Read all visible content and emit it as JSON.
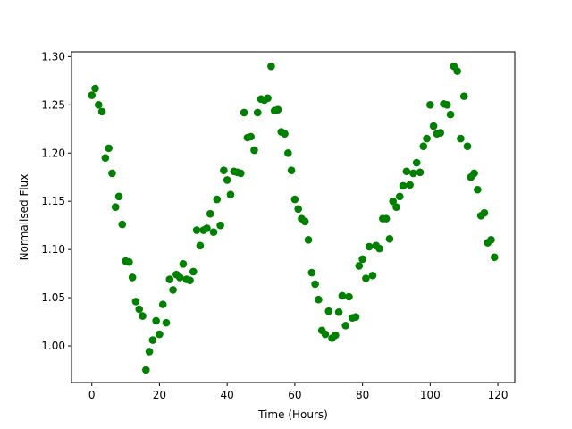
{
  "chart_data": {
    "type": "scatter",
    "title": "",
    "xlabel": "Time (Hours)",
    "ylabel": "Normalised Flux",
    "xlim": [
      -6,
      125
    ],
    "ylim": [
      0.962,
      1.305
    ],
    "xticks": [
      0,
      20,
      40,
      60,
      80,
      100,
      120
    ],
    "yticks": [
      1.0,
      1.05,
      1.1,
      1.15,
      1.2,
      1.25,
      1.3
    ],
    "ytick_labels": [
      "1.00",
      "1.05",
      "1.10",
      "1.15",
      "1.20",
      "1.25",
      "1.30"
    ],
    "grid": false,
    "legend": "none",
    "marker_color": "#008000",
    "series": [
      {
        "x": [
          0,
          1,
          2,
          3,
          4,
          5,
          6,
          7,
          8,
          9,
          10,
          11,
          12,
          13,
          14,
          15,
          16,
          17,
          18,
          19,
          20,
          21,
          22,
          23,
          24,
          25,
          26,
          27,
          28,
          29,
          30,
          31,
          32,
          33,
          34,
          35,
          36,
          37,
          38,
          39,
          40,
          41,
          42,
          43,
          44,
          45,
          46,
          47,
          48,
          49,
          50,
          51,
          52,
          53,
          54,
          55,
          56,
          57,
          58,
          59,
          60,
          61,
          62,
          63,
          64,
          65,
          66,
          67,
          68,
          69,
          70,
          71,
          72,
          73,
          74,
          75,
          76,
          77,
          78,
          79,
          80,
          81,
          82,
          83,
          84,
          85,
          86,
          87,
          88,
          89,
          90,
          91,
          92,
          93,
          94,
          95,
          96,
          97,
          98,
          99,
          100,
          101,
          102,
          103,
          104,
          105,
          106,
          107,
          108,
          109,
          110,
          111,
          112,
          113,
          114,
          115,
          116,
          117,
          118,
          119
        ],
        "y": [
          1.26,
          1.267,
          1.25,
          1.243,
          1.195,
          1.205,
          1.179,
          1.144,
          1.155,
          1.126,
          1.088,
          1.087,
          1.071,
          1.046,
          1.038,
          1.031,
          0.975,
          0.994,
          1.006,
          1.026,
          1.012,
          1.043,
          1.024,
          1.069,
          1.058,
          1.074,
          1.071,
          1.085,
          1.069,
          1.068,
          1.077,
          1.12,
          1.104,
          1.12,
          1.122,
          1.137,
          1.118,
          1.152,
          1.125,
          1.182,
          1.172,
          1.157,
          1.181,
          1.18,
          1.179,
          1.242,
          1.216,
          1.217,
          1.203,
          1.242,
          1.256,
          1.255,
          1.257,
          1.29,
          1.244,
          1.245,
          1.222,
          1.22,
          1.2,
          1.182,
          1.152,
          1.142,
          1.132,
          1.129,
          1.11,
          1.076,
          1.064,
          1.048,
          1.016,
          1.012,
          1.036,
          1.008,
          1.011,
          1.035,
          1.052,
          1.021,
          1.051,
          1.029,
          1.03,
          1.083,
          1.09,
          1.07,
          1.103,
          1.073,
          1.104,
          1.101,
          1.132,
          1.132,
          1.111,
          1.15,
          1.144,
          1.155,
          1.166,
          1.181,
          1.167,
          1.179,
          1.19,
          1.18,
          1.207,
          1.215,
          1.25,
          1.228,
          1.22,
          1.221,
          1.251,
          1.25,
          1.24,
          1.29,
          1.285,
          1.215,
          1.259,
          1.207,
          1.175,
          1.179,
          1.162,
          1.135,
          1.138,
          1.107,
          1.11,
          1.092
        ]
      }
    ]
  }
}
